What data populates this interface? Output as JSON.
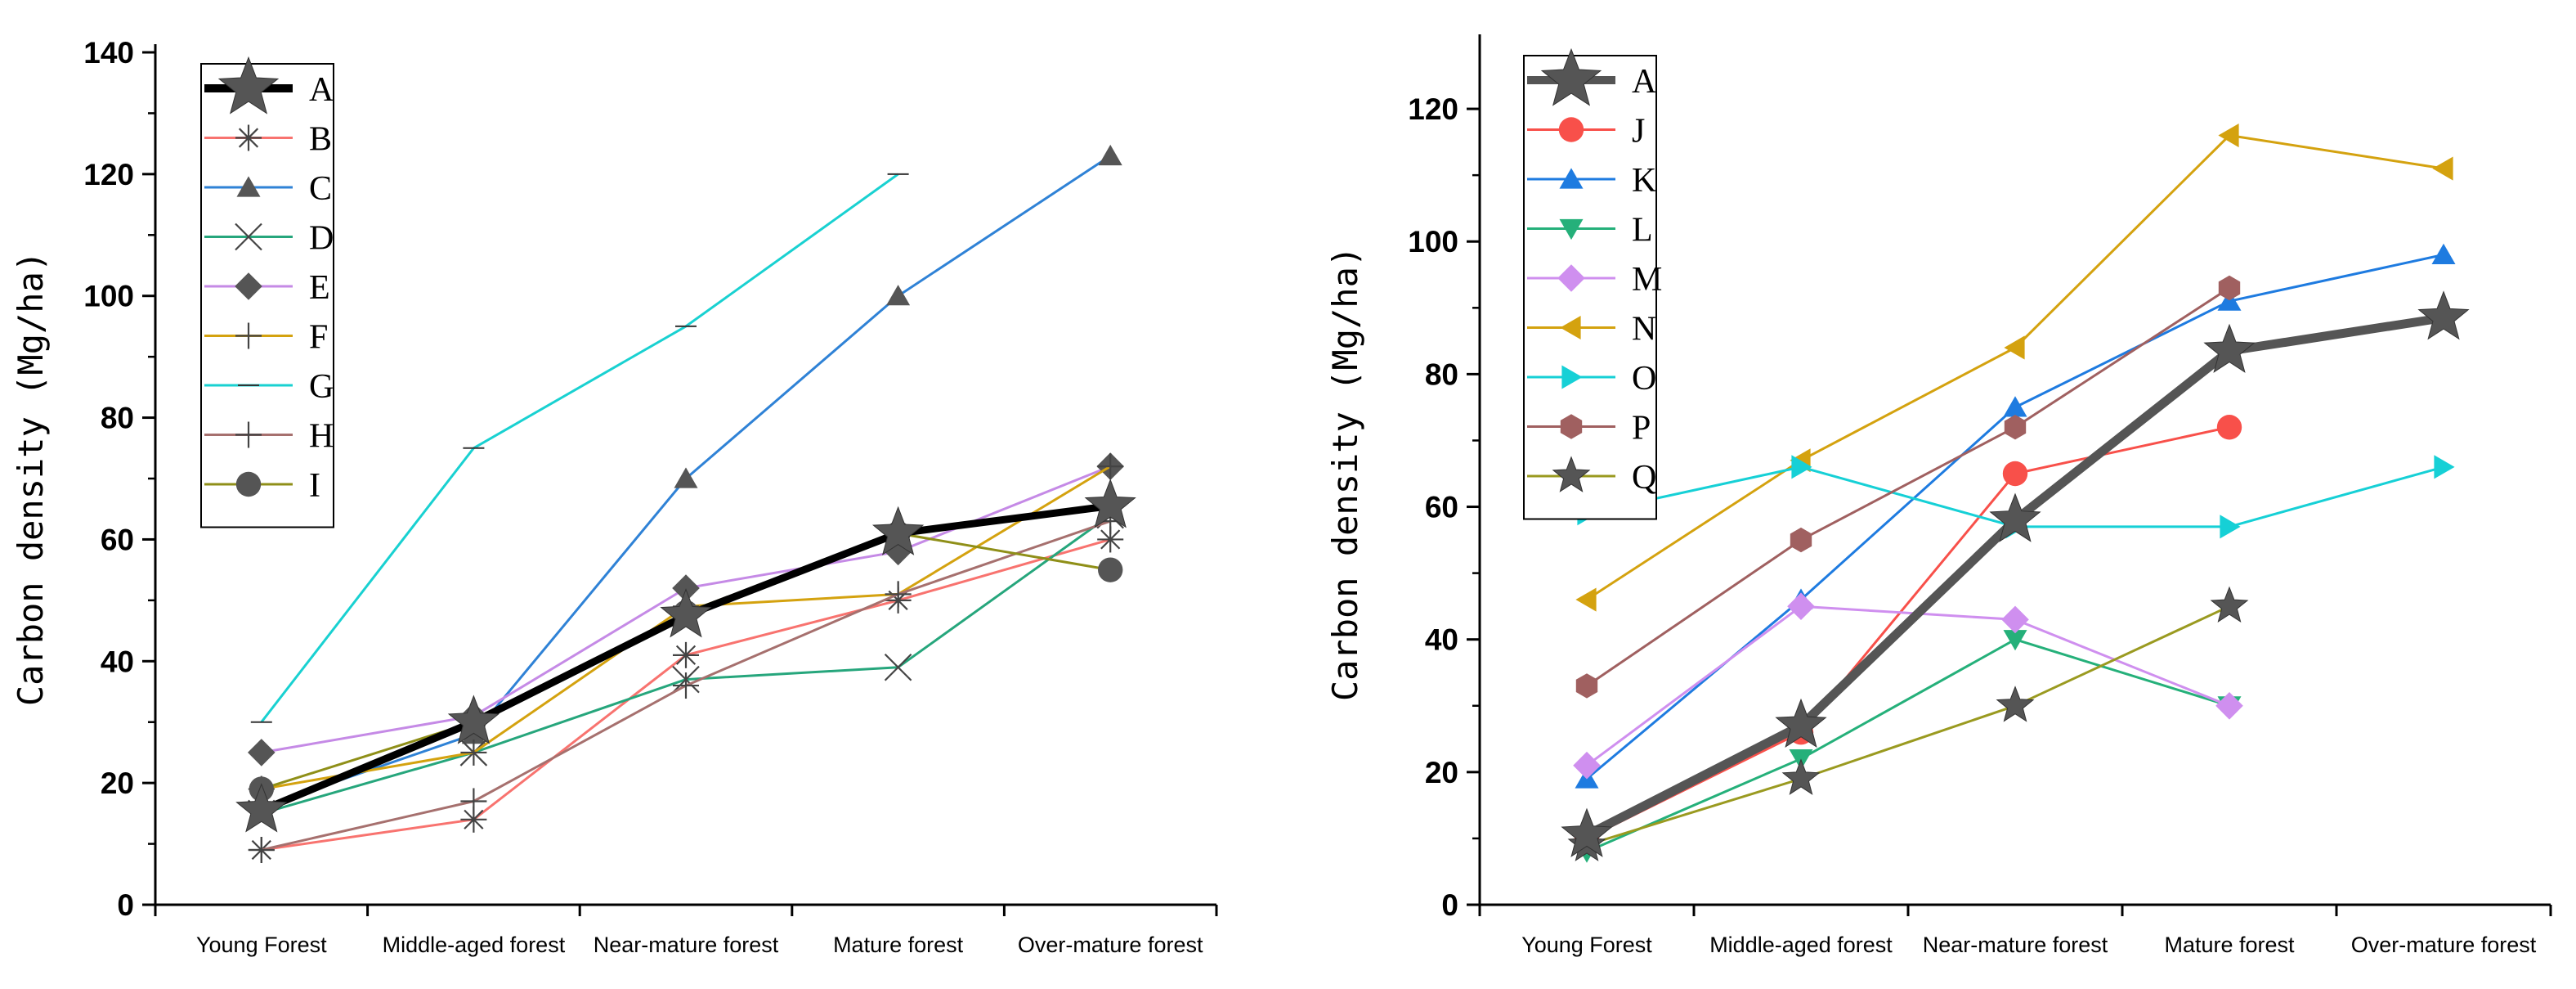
{
  "chart_data": [
    {
      "type": "line",
      "categories": [
        "Young Forest",
        "Middle-aged forest",
        "Near-mature forest",
        "Mature forest",
        "Over-mature forest"
      ],
      "ylabel": "Carbon density (Mg/ha)",
      "ylim": [
        0,
        140
      ],
      "yticks": [
        0,
        20,
        40,
        60,
        80,
        100,
        120,
        140
      ],
      "legend_position": "top-left",
      "series": [
        {
          "name": "A",
          "color": "#000000",
          "marker": "star",
          "values": [
            15.5,
            30,
            47.5,
            61,
            65.5
          ]
        },
        {
          "name": "B",
          "color": "#f8736f",
          "marker": "asterisk",
          "values": [
            9,
            14,
            41,
            50,
            60
          ]
        },
        {
          "name": "C",
          "color": "#2f82d6",
          "marker": "triangle",
          "values": [
            16,
            28,
            70,
            100,
            123
          ]
        },
        {
          "name": "D",
          "color": "#26a67c",
          "marker": "x",
          "values": [
            15,
            25,
            37,
            39,
            64
          ]
        },
        {
          "name": "E",
          "color": "#c58ae6",
          "marker": "diamond",
          "values": [
            25,
            31,
            52,
            58,
            72
          ]
        },
        {
          "name": "F",
          "color": "#d4a20f",
          "marker": "plus",
          "values": [
            19,
            25,
            49,
            51,
            72
          ]
        },
        {
          "name": "G",
          "color": "#19d1d1",
          "marker": "hline",
          "values": [
            30,
            75,
            95,
            120,
            null
          ]
        },
        {
          "name": "H",
          "color": "#a6706e",
          "marker": "plus",
          "values": [
            9,
            17,
            36,
            51,
            63
          ]
        },
        {
          "name": "I",
          "color": "#8f8f18",
          "marker": "circle",
          "values": [
            19,
            30,
            48,
            61,
            55
          ]
        }
      ]
    },
    {
      "type": "line",
      "categories": [
        "Young Forest",
        "Middle-aged forest",
        "Near-mature forest",
        "Mature forest",
        "Over-mature forest"
      ],
      "ylabel": "Carbon density (Mg/ha)",
      "ylim": [
        0,
        130
      ],
      "yticks": [
        0,
        20,
        40,
        60,
        80,
        100,
        120
      ],
      "legend_position": "top-left",
      "series": [
        {
          "name": "A",
          "color": "#666666",
          "marker": "star",
          "values": [
            10.5,
            27,
            58,
            83.5,
            88.5
          ]
        },
        {
          "name": "J",
          "color": "#f8504a",
          "marker": "circle",
          "values": [
            10,
            26,
            65,
            72,
            null
          ]
        },
        {
          "name": "K",
          "color": "#1e7be0",
          "marker": "triangle",
          "values": [
            19,
            46,
            75,
            91,
            98
          ]
        },
        {
          "name": "L",
          "color": "#25b07a",
          "marker": "triangle-down",
          "values": [
            8,
            22,
            40,
            30,
            null
          ]
        },
        {
          "name": "M",
          "color": "#cf8fef",
          "marker": "diamond",
          "values": [
            21,
            45,
            43,
            30,
            null
          ]
        },
        {
          "name": "N",
          "color": "#d4a20f",
          "marker": "triangle-left",
          "values": [
            46,
            67,
            84,
            116,
            111
          ]
        },
        {
          "name": "O",
          "color": "#16d0d6",
          "marker": "triangle-right",
          "values": [
            59,
            66,
            57,
            57,
            66
          ]
        },
        {
          "name": "P",
          "color": "#a06060",
          "marker": "hexagon",
          "values": [
            33,
            55,
            72,
            93,
            null
          ]
        },
        {
          "name": "Q",
          "color": "#9a9a20",
          "marker": "star",
          "values": [
            9,
            19,
            30,
            45,
            null
          ]
        }
      ]
    }
  ]
}
